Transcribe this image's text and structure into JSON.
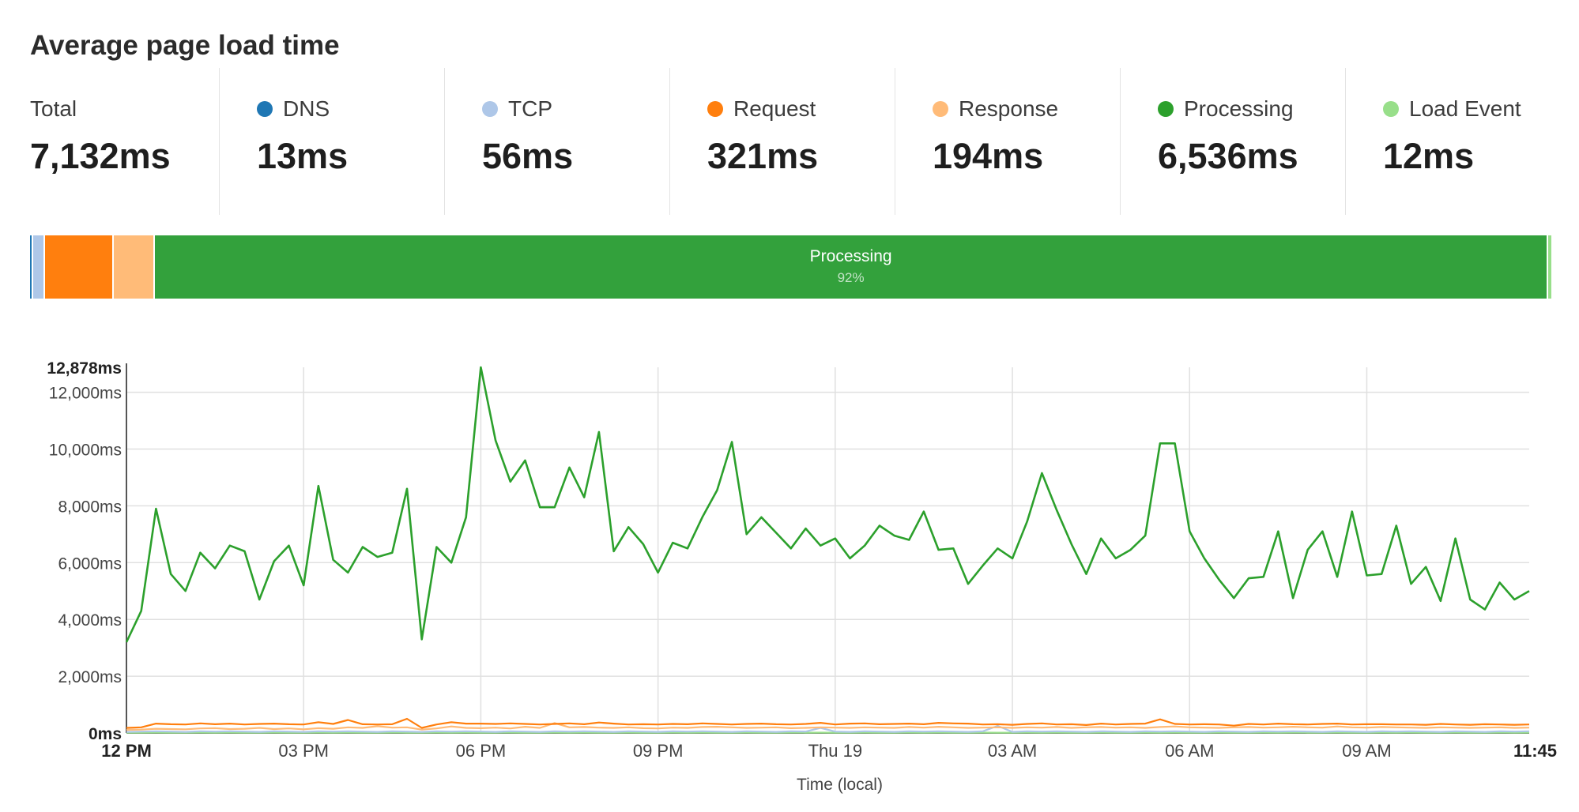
{
  "page_title": "Average page load time",
  "stats": [
    {
      "label": "Total",
      "value": "7,132ms",
      "color": null
    },
    {
      "label": "DNS",
      "value": "13ms",
      "color": "#1f77b4"
    },
    {
      "label": "TCP",
      "value": "56ms",
      "color": "#aec7e8"
    },
    {
      "label": "Request",
      "value": "321ms",
      "color": "#ff7f0e"
    },
    {
      "label": "Response",
      "value": "194ms",
      "color": "#ffbb78"
    },
    {
      "label": "Processing",
      "value": "6,536ms",
      "color": "#2ca02c"
    },
    {
      "label": "Load Event",
      "value": "12ms",
      "color": "#98df8a"
    }
  ],
  "breakdown_bar": {
    "segments": [
      {
        "name": "DNS",
        "ms": 13,
        "color": "#1f77b4"
      },
      {
        "name": "TCP",
        "ms": 56,
        "color": "#aec7e8"
      },
      {
        "name": "Request",
        "ms": 321,
        "color": "#ff7f0e"
      },
      {
        "name": "Response",
        "ms": 194,
        "color": "#ffbb78"
      },
      {
        "name": "Processing",
        "ms": 6536,
        "color": "#33a13c"
      },
      {
        "name": "Load Event",
        "ms": 12,
        "color": "#98df8a"
      }
    ],
    "label": "Processing",
    "percent": "92%"
  },
  "chart_data": {
    "type": "line",
    "xlabel": "Time (local)",
    "ylabel": "",
    "ylim": [
      0,
      12878
    ],
    "y_max_label": "12,878ms",
    "y_ticks": [
      {
        "value": 0,
        "label": "0ms"
      },
      {
        "value": 2000,
        "label": "2,000ms"
      },
      {
        "value": 4000,
        "label": "4,000ms"
      },
      {
        "value": 6000,
        "label": "6,000ms"
      },
      {
        "value": 8000,
        "label": "8,000ms"
      },
      {
        "value": 10000,
        "label": "10,000ms"
      },
      {
        "value": 12000,
        "label": "12,000ms"
      }
    ],
    "x_range_hours": [
      0,
      23.75
    ],
    "x_ticks": [
      {
        "hours": 0,
        "label": "12 PM",
        "bold": true
      },
      {
        "hours": 3,
        "label": "03 PM",
        "bold": false
      },
      {
        "hours": 6,
        "label": "06 PM",
        "bold": false
      },
      {
        "hours": 9,
        "label": "09 PM",
        "bold": false
      },
      {
        "hours": 12,
        "label": "Thu 19",
        "bold": false
      },
      {
        "hours": 15,
        "label": "03 AM",
        "bold": false
      },
      {
        "hours": 18,
        "label": "06 AM",
        "bold": false
      },
      {
        "hours": 21,
        "label": "09 AM",
        "bold": false
      },
      {
        "hours": 23.75,
        "label": "11:45",
        "bold": true
      }
    ],
    "grid": true,
    "series": [
      {
        "name": "Processing",
        "color": "#2ca02c",
        "values": [
          3200,
          4300,
          7900,
          5600,
          5000,
          6350,
          5800,
          6600,
          6400,
          4700,
          6050,
          6600,
          5200,
          8700,
          6100,
          5650,
          6550,
          6200,
          6350,
          8600,
          3300,
          6550,
          6000,
          7600,
          12878,
          10300,
          8850,
          9600,
          7950,
          7950,
          9350,
          8300,
          10600,
          6400,
          7250,
          6650,
          5650,
          6700,
          6500,
          7600,
          8550,
          10250,
          7000,
          7600,
          7050,
          6500,
          7200,
          6600,
          6850,
          6150,
          6600,
          7300,
          6950,
          6800,
          7800,
          6450,
          6500,
          5250,
          5900,
          6500,
          6150,
          7450,
          9150,
          7850,
          6650,
          5600,
          6850,
          6150,
          6450,
          6950,
          10200,
          10200,
          7100,
          6150,
          5400,
          4750,
          5450,
          5500,
          7100,
          4750,
          6450,
          7100,
          5500,
          7800,
          5550,
          5600,
          7300,
          5250,
          5850,
          4650,
          6850,
          4700,
          4350,
          5300,
          4700,
          5000
        ]
      },
      {
        "name": "Request",
        "color": "#ff7f0e",
        "values": [
          180,
          200,
          330,
          310,
          300,
          340,
          310,
          330,
          300,
          320,
          330,
          310,
          300,
          380,
          320,
          460,
          310,
          300,
          310,
          500,
          180,
          300,
          380,
          330,
          330,
          320,
          340,
          320,
          300,
          320,
          340,
          310,
          370,
          330,
          300,
          310,
          300,
          320,
          310,
          340,
          320,
          300,
          320,
          330,
          310,
          300,
          320,
          360,
          300,
          330,
          340,
          310,
          320,
          330,
          310,
          360,
          340,
          330,
          300,
          310,
          290,
          320,
          340,
          300,
          310,
          280,
          330,
          300,
          320,
          330,
          480,
          320,
          300,
          310,
          300,
          260,
          320,
          300,
          330,
          310,
          300,
          320,
          330,
          300,
          310,
          310,
          300,
          300,
          290,
          320,
          300,
          290,
          310,
          300,
          290,
          300
        ]
      },
      {
        "name": "Response",
        "color": "#ffbb78",
        "values": [
          110,
          120,
          150,
          140,
          130,
          160,
          170,
          140,
          150,
          180,
          140,
          160,
          130,
          170,
          150,
          200,
          180,
          240,
          190,
          200,
          120,
          160,
          230,
          180,
          170,
          190,
          160,
          220,
          180,
          350,
          200,
          210,
          190,
          180,
          200,
          170,
          160,
          190,
          180,
          210,
          220,
          200,
          180,
          190,
          200,
          170,
          180,
          200,
          190,
          180,
          200,
          190,
          180,
          210,
          190,
          220,
          200,
          180,
          190,
          200,
          180,
          200,
          190,
          210,
          180,
          200,
          210,
          190,
          200,
          180,
          210,
          230,
          200,
          190,
          180,
          200,
          210,
          190,
          200,
          220,
          200,
          190,
          230,
          200,
          190,
          210,
          200,
          190,
          180,
          200,
          190,
          180,
          190,
          200,
          180,
          190
        ]
      },
      {
        "name": "TCP",
        "color": "#aec7e8",
        "values": [
          40,
          50,
          60,
          50,
          40,
          60,
          50,
          60,
          50,
          40,
          60,
          50,
          40,
          60,
          50,
          60,
          50,
          40,
          60,
          50,
          40,
          60,
          50,
          60,
          50,
          40,
          60,
          50,
          40,
          60,
          50,
          60,
          50,
          40,
          60,
          50,
          40,
          60,
          50,
          60,
          50,
          40,
          60,
          50,
          40,
          60,
          50,
          180,
          50,
          40,
          60,
          50,
          40,
          60,
          50,
          60,
          50,
          40,
          60,
          250,
          40,
          60,
          50,
          60,
          50,
          40,
          60,
          50,
          40,
          60,
          50,
          60,
          50,
          40,
          60,
          50,
          40,
          60,
          50,
          60,
          50,
          40,
          60,
          50,
          40,
          60,
          50,
          60,
          50,
          40,
          60,
          50,
          40,
          60,
          50,
          60
        ]
      },
      {
        "name": "Load Event",
        "color": "#98df8a",
        "values": [
          10,
          12,
          14,
          12,
          10,
          14,
          12,
          14,
          12,
          10,
          14,
          12,
          10,
          14,
          12,
          14,
          12,
          10,
          14,
          12,
          10,
          14,
          12,
          14,
          12,
          10,
          14,
          12,
          10,
          14,
          12,
          14,
          12,
          10,
          14,
          12,
          10,
          14,
          12,
          14,
          12,
          10,
          14,
          12,
          10,
          14,
          12,
          14,
          12,
          10,
          14,
          12,
          10,
          14,
          12,
          14,
          12,
          10,
          14,
          12,
          10,
          14,
          12,
          14,
          12,
          10,
          14,
          12,
          10,
          14,
          12,
          14,
          12,
          10,
          14,
          12,
          10,
          14,
          12,
          14,
          12,
          10,
          14,
          12,
          10,
          14,
          12,
          14,
          12,
          10,
          14,
          12,
          10,
          14,
          12,
          14
        ]
      }
    ]
  }
}
